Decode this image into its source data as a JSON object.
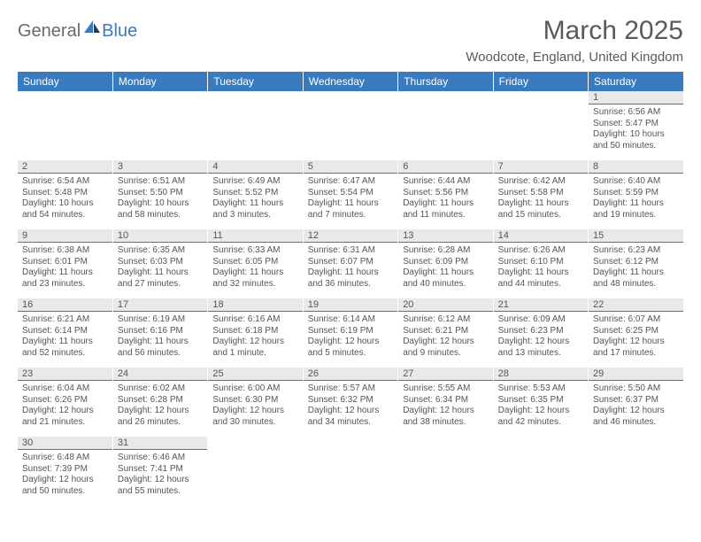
{
  "logo": {
    "general": "General",
    "blue": "Blue"
  },
  "header": {
    "month_title": "March 2025",
    "location": "Woodcote, England, United Kingdom"
  },
  "colors": {
    "header_bg": "#3a7bbf",
    "header_text": "#ffffff",
    "daynum_bg": "#e9e9e9",
    "daynum_border": "#3a7bbf",
    "body_text": "#555555",
    "page_bg": "#ffffff"
  },
  "weekdays": [
    "Sunday",
    "Monday",
    "Tuesday",
    "Wednesday",
    "Thursday",
    "Friday",
    "Saturday"
  ],
  "weeks": [
    [
      null,
      null,
      null,
      null,
      null,
      null,
      {
        "n": "1",
        "sunrise": "Sunrise: 6:56 AM",
        "sunset": "Sunset: 5:47 PM",
        "daylight": "Daylight: 10 hours and 50 minutes."
      }
    ],
    [
      {
        "n": "2",
        "sunrise": "Sunrise: 6:54 AM",
        "sunset": "Sunset: 5:48 PM",
        "daylight": "Daylight: 10 hours and 54 minutes."
      },
      {
        "n": "3",
        "sunrise": "Sunrise: 6:51 AM",
        "sunset": "Sunset: 5:50 PM",
        "daylight": "Daylight: 10 hours and 58 minutes."
      },
      {
        "n": "4",
        "sunrise": "Sunrise: 6:49 AM",
        "sunset": "Sunset: 5:52 PM",
        "daylight": "Daylight: 11 hours and 3 minutes."
      },
      {
        "n": "5",
        "sunrise": "Sunrise: 6:47 AM",
        "sunset": "Sunset: 5:54 PM",
        "daylight": "Daylight: 11 hours and 7 minutes."
      },
      {
        "n": "6",
        "sunrise": "Sunrise: 6:44 AM",
        "sunset": "Sunset: 5:56 PM",
        "daylight": "Daylight: 11 hours and 11 minutes."
      },
      {
        "n": "7",
        "sunrise": "Sunrise: 6:42 AM",
        "sunset": "Sunset: 5:58 PM",
        "daylight": "Daylight: 11 hours and 15 minutes."
      },
      {
        "n": "8",
        "sunrise": "Sunrise: 6:40 AM",
        "sunset": "Sunset: 5:59 PM",
        "daylight": "Daylight: 11 hours and 19 minutes."
      }
    ],
    [
      {
        "n": "9",
        "sunrise": "Sunrise: 6:38 AM",
        "sunset": "Sunset: 6:01 PM",
        "daylight": "Daylight: 11 hours and 23 minutes."
      },
      {
        "n": "10",
        "sunrise": "Sunrise: 6:35 AM",
        "sunset": "Sunset: 6:03 PM",
        "daylight": "Daylight: 11 hours and 27 minutes."
      },
      {
        "n": "11",
        "sunrise": "Sunrise: 6:33 AM",
        "sunset": "Sunset: 6:05 PM",
        "daylight": "Daylight: 11 hours and 32 minutes."
      },
      {
        "n": "12",
        "sunrise": "Sunrise: 6:31 AM",
        "sunset": "Sunset: 6:07 PM",
        "daylight": "Daylight: 11 hours and 36 minutes."
      },
      {
        "n": "13",
        "sunrise": "Sunrise: 6:28 AM",
        "sunset": "Sunset: 6:09 PM",
        "daylight": "Daylight: 11 hours and 40 minutes."
      },
      {
        "n": "14",
        "sunrise": "Sunrise: 6:26 AM",
        "sunset": "Sunset: 6:10 PM",
        "daylight": "Daylight: 11 hours and 44 minutes."
      },
      {
        "n": "15",
        "sunrise": "Sunrise: 6:23 AM",
        "sunset": "Sunset: 6:12 PM",
        "daylight": "Daylight: 11 hours and 48 minutes."
      }
    ],
    [
      {
        "n": "16",
        "sunrise": "Sunrise: 6:21 AM",
        "sunset": "Sunset: 6:14 PM",
        "daylight": "Daylight: 11 hours and 52 minutes."
      },
      {
        "n": "17",
        "sunrise": "Sunrise: 6:19 AM",
        "sunset": "Sunset: 6:16 PM",
        "daylight": "Daylight: 11 hours and 56 minutes."
      },
      {
        "n": "18",
        "sunrise": "Sunrise: 6:16 AM",
        "sunset": "Sunset: 6:18 PM",
        "daylight": "Daylight: 12 hours and 1 minute."
      },
      {
        "n": "19",
        "sunrise": "Sunrise: 6:14 AM",
        "sunset": "Sunset: 6:19 PM",
        "daylight": "Daylight: 12 hours and 5 minutes."
      },
      {
        "n": "20",
        "sunrise": "Sunrise: 6:12 AM",
        "sunset": "Sunset: 6:21 PM",
        "daylight": "Daylight: 12 hours and 9 minutes."
      },
      {
        "n": "21",
        "sunrise": "Sunrise: 6:09 AM",
        "sunset": "Sunset: 6:23 PM",
        "daylight": "Daylight: 12 hours and 13 minutes."
      },
      {
        "n": "22",
        "sunrise": "Sunrise: 6:07 AM",
        "sunset": "Sunset: 6:25 PM",
        "daylight": "Daylight: 12 hours and 17 minutes."
      }
    ],
    [
      {
        "n": "23",
        "sunrise": "Sunrise: 6:04 AM",
        "sunset": "Sunset: 6:26 PM",
        "daylight": "Daylight: 12 hours and 21 minutes."
      },
      {
        "n": "24",
        "sunrise": "Sunrise: 6:02 AM",
        "sunset": "Sunset: 6:28 PM",
        "daylight": "Daylight: 12 hours and 26 minutes."
      },
      {
        "n": "25",
        "sunrise": "Sunrise: 6:00 AM",
        "sunset": "Sunset: 6:30 PM",
        "daylight": "Daylight: 12 hours and 30 minutes."
      },
      {
        "n": "26",
        "sunrise": "Sunrise: 5:57 AM",
        "sunset": "Sunset: 6:32 PM",
        "daylight": "Daylight: 12 hours and 34 minutes."
      },
      {
        "n": "27",
        "sunrise": "Sunrise: 5:55 AM",
        "sunset": "Sunset: 6:34 PM",
        "daylight": "Daylight: 12 hours and 38 minutes."
      },
      {
        "n": "28",
        "sunrise": "Sunrise: 5:53 AM",
        "sunset": "Sunset: 6:35 PM",
        "daylight": "Daylight: 12 hours and 42 minutes."
      },
      {
        "n": "29",
        "sunrise": "Sunrise: 5:50 AM",
        "sunset": "Sunset: 6:37 PM",
        "daylight": "Daylight: 12 hours and 46 minutes."
      }
    ],
    [
      {
        "n": "30",
        "sunrise": "Sunrise: 6:48 AM",
        "sunset": "Sunset: 7:39 PM",
        "daylight": "Daylight: 12 hours and 50 minutes."
      },
      {
        "n": "31",
        "sunrise": "Sunrise: 6:46 AM",
        "sunset": "Sunset: 7:41 PM",
        "daylight": "Daylight: 12 hours and 55 minutes."
      },
      null,
      null,
      null,
      null,
      null
    ]
  ]
}
